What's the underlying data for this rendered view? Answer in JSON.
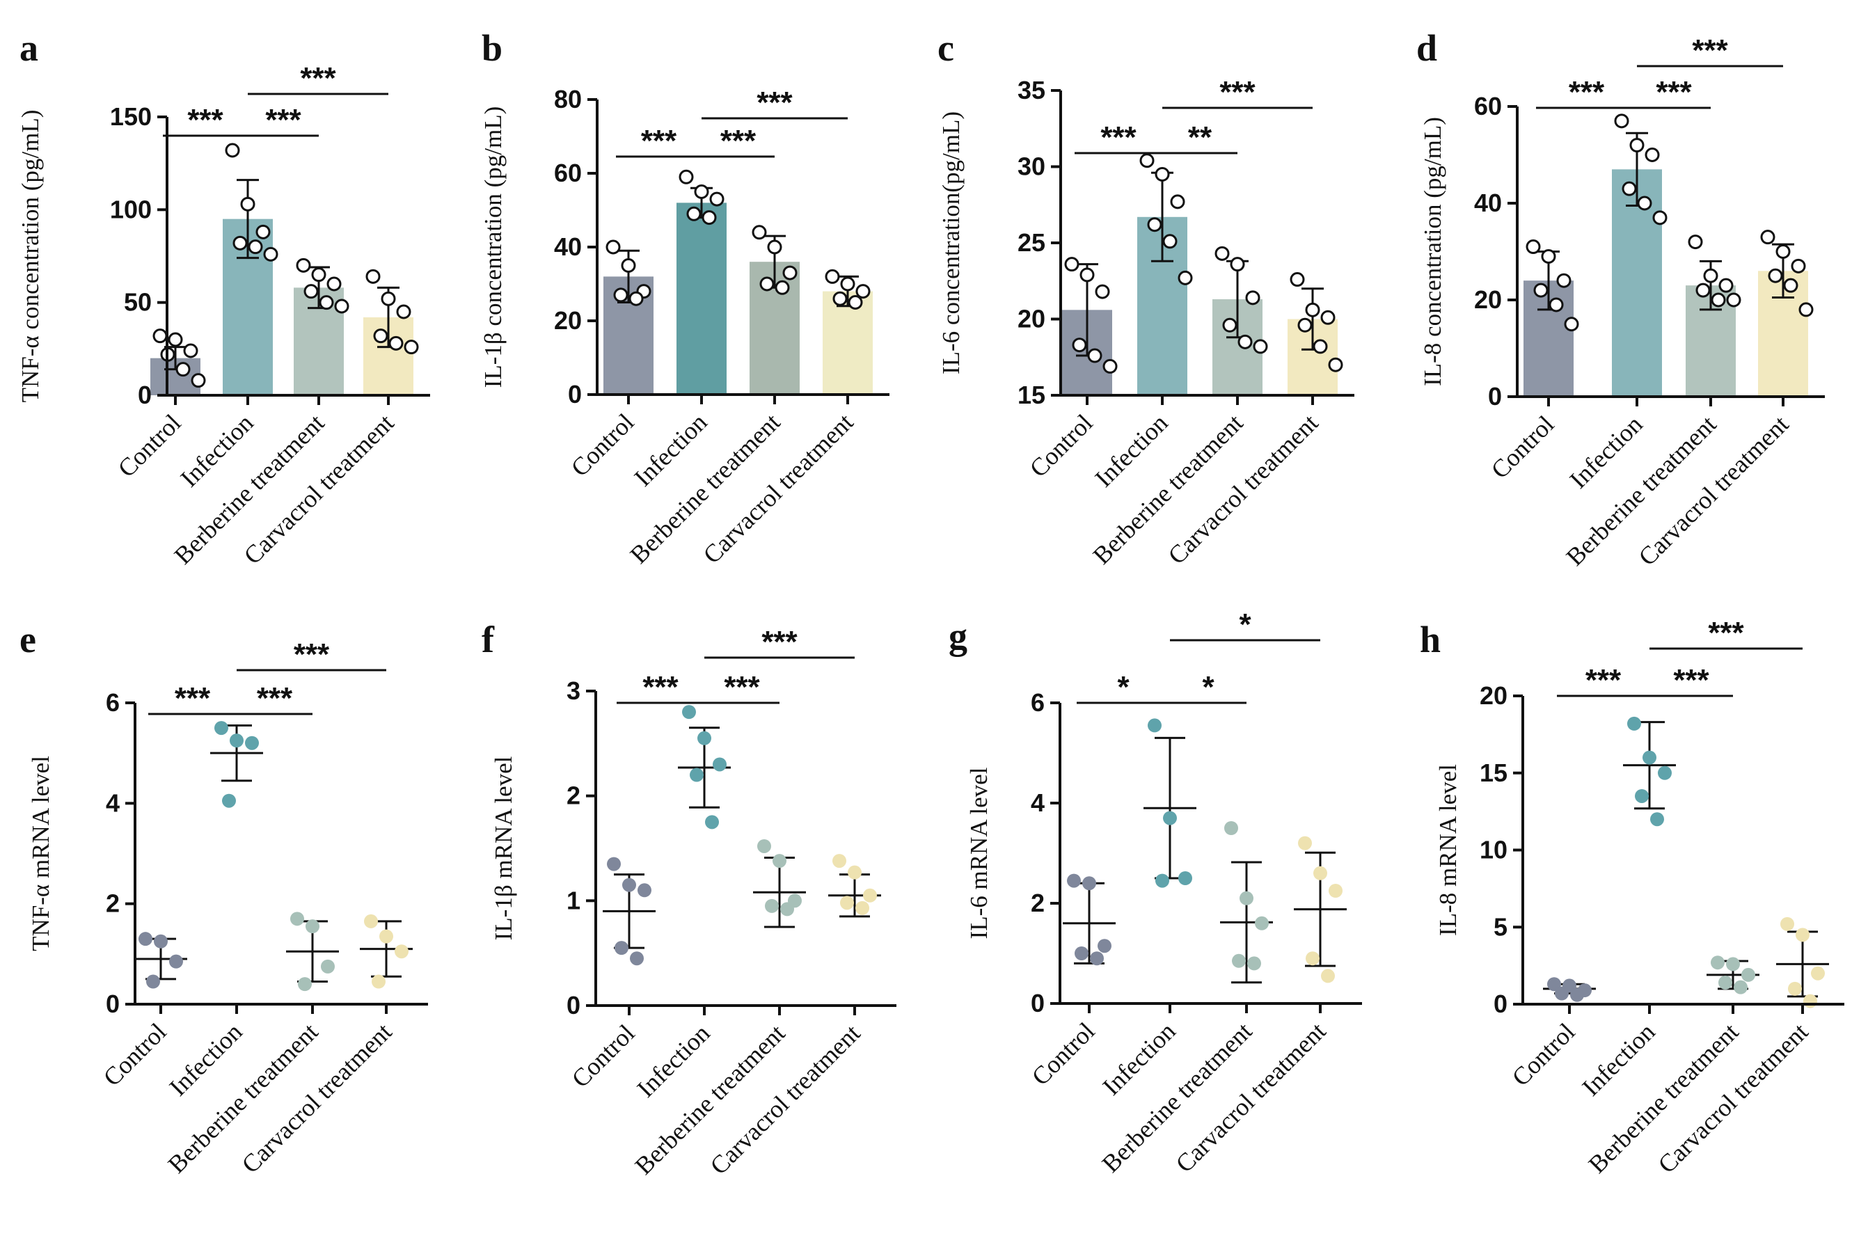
{
  "chart_data": [
    {
      "label": "a",
      "type": "bar",
      "ylabel": "TNF-α concentration (pg/mL)",
      "ylim": [
        0,
        150
      ],
      "yticks": [
        0,
        50,
        100,
        150
      ],
      "categories": [
        "Control",
        "Infection",
        "Berberine treatment",
        "Carvacrol treatment"
      ],
      "values": [
        20,
        95,
        58,
        42
      ],
      "sd": [
        6,
        21,
        11,
        16
      ],
      "points": [
        [
          32,
          30,
          24,
          22,
          14,
          8
        ],
        [
          132,
          103,
          88,
          82,
          80,
          76
        ],
        [
          70,
          65,
          60,
          56,
          50,
          48
        ],
        [
          64,
          52,
          45,
          32,
          28,
          26
        ]
      ],
      "significance": [
        {
          "from": 0,
          "to": 1,
          "label": "***"
        },
        {
          "from": 1,
          "to": 2,
          "label": "***"
        },
        {
          "from": 1,
          "to": 3,
          "label": "***"
        }
      ]
    },
    {
      "label": "b",
      "type": "bar",
      "ylabel": "IL-1β concentration (pg/mL)",
      "ylim": [
        0,
        80
      ],
      "yticks": [
        0,
        20,
        40,
        60,
        80
      ],
      "categories": [
        "Control",
        "Infection",
        "Berberine treatment",
        "Carvacrol treatment"
      ],
      "values": [
        32,
        52,
        36,
        28
      ],
      "sd": [
        7,
        4,
        7,
        4
      ],
      "points": [
        [
          40,
          35,
          28,
          27,
          26
        ],
        [
          59,
          55,
          53,
          49,
          48
        ],
        [
          44,
          40,
          33,
          30,
          29
        ],
        [
          32,
          30,
          28,
          26,
          25
        ]
      ],
      "significance": [
        {
          "from": 0,
          "to": 1,
          "label": "***"
        },
        {
          "from": 1,
          "to": 2,
          "label": "***"
        },
        {
          "from": 1,
          "to": 3,
          "label": "***"
        }
      ]
    },
    {
      "label": "c",
      "type": "bar",
      "ylabel": "IL-6 concentration(pg/mL)",
      "ylim": [
        15,
        35
      ],
      "yticks": [
        15,
        20,
        25,
        30,
        35
      ],
      "categories": [
        "Control",
        "Infection",
        "Berberine treatment",
        "Carvacrol treatment"
      ],
      "values": [
        20.6,
        26.7,
        21.3,
        20
      ],
      "sd": [
        3,
        2.9,
        2.5,
        2
      ],
      "points": [
        [
          23.6,
          22.9,
          21.8,
          18.3,
          17.6,
          16.9
        ],
        [
          30.4,
          29.5,
          27.7,
          26.2,
          25.1,
          22.7
        ],
        [
          24.3,
          23.6,
          21.4,
          19.6,
          18.5,
          18.2
        ],
        [
          22.6,
          20.6,
          20.1,
          19.6,
          18.2,
          17
        ]
      ],
      "significance": [
        {
          "from": 0,
          "to": 1,
          "label": "***"
        },
        {
          "from": 1,
          "to": 2,
          "label": "**"
        },
        {
          "from": 1,
          "to": 3,
          "label": "***"
        }
      ]
    },
    {
      "label": "d",
      "type": "bar",
      "ylabel": "IL-8 concentration (pg/mL)",
      "ylim": [
        0,
        60
      ],
      "yticks": [
        0,
        20,
        40,
        60
      ],
      "categories": [
        "Control",
        "Infection",
        "Berberine treatment",
        "Carvacrol treatment"
      ],
      "values": [
        24,
        47,
        23,
        26
      ],
      "sd": [
        6,
        7.5,
        5,
        5.5
      ],
      "points": [
        [
          31,
          29,
          24,
          22,
          19,
          15
        ],
        [
          57,
          52,
          50,
          43,
          40,
          37
        ],
        [
          32,
          25,
          23,
          22,
          20,
          20
        ],
        [
          33,
          30,
          27,
          25,
          23,
          18
        ]
      ],
      "significance": [
        {
          "from": 0,
          "to": 1,
          "label": "***"
        },
        {
          "from": 1,
          "to": 2,
          "label": "***"
        },
        {
          "from": 1,
          "to": 3,
          "label": "***"
        }
      ]
    },
    {
      "label": "e",
      "type": "scatter",
      "ylabel": "TNF-α mRNA level",
      "ylim": [
        0,
        6
      ],
      "yticks": [
        0,
        2,
        4,
        6
      ],
      "categories": [
        "Control",
        "Infection",
        "Berberine treatment",
        "Carvacrol treatment"
      ],
      "means": [
        0.9,
        5.0,
        1.05,
        1.1
      ],
      "sd": [
        0.4,
        0.55,
        0.6,
        0.55
      ],
      "points": [
        [
          1.3,
          1.25,
          0.85,
          0.45
        ],
        [
          5.5,
          5.25,
          5.2,
          4.05
        ],
        [
          1.7,
          1.55,
          0.75,
          0.4
        ],
        [
          1.65,
          1.35,
          1.05,
          0.45
        ]
      ],
      "significance": [
        {
          "from": 0,
          "to": 1,
          "label": "***"
        },
        {
          "from": 1,
          "to": 2,
          "label": "***"
        },
        {
          "from": 1,
          "to": 3,
          "label": "***"
        }
      ]
    },
    {
      "label": "f",
      "type": "scatter",
      "ylabel": "IL-1β  mRNA level",
      "ylim": [
        0,
        3
      ],
      "yticks": [
        0,
        1,
        2,
        3
      ],
      "categories": [
        "Control",
        "Infection",
        "Berberine treatment",
        "Carvacrol treatment"
      ],
      "means": [
        0.9,
        2.27,
        1.08,
        1.05
      ],
      "sd": [
        0.35,
        0.38,
        0.33,
        0.2
      ],
      "points": [
        [
          1.35,
          1.15,
          1.1,
          0.55,
          0.45
        ],
        [
          2.8,
          2.55,
          2.3,
          2.2,
          1.75
        ],
        [
          1.52,
          1.38,
          1.0,
          0.95,
          0.92
        ],
        [
          1.38,
          1.27,
          1.05,
          0.98,
          0.93
        ]
      ],
      "significance": [
        {
          "from": 0,
          "to": 1,
          "label": "***"
        },
        {
          "from": 1,
          "to": 2,
          "label": "***"
        },
        {
          "from": 1,
          "to": 3,
          "label": "***"
        }
      ]
    },
    {
      "label": "g",
      "type": "scatter",
      "ylabel": "IL-6  mRNA level",
      "ylim": [
        0,
        6
      ],
      "yticks": [
        0,
        2,
        4,
        6
      ],
      "categories": [
        "Control",
        "Infection",
        "Berberine treatment",
        "Carvacrol treatment"
      ],
      "means": [
        1.6,
        3.9,
        1.62,
        1.88
      ],
      "sd": [
        0.8,
        1.4,
        1.2,
        1.13
      ],
      "points": [
        [
          2.45,
          2.4,
          1.15,
          1.0,
          0.9
        ],
        [
          5.55,
          3.7,
          2.5,
          2.45
        ],
        [
          3.5,
          2.1,
          1.6,
          0.85,
          0.8
        ],
        [
          3.2,
          2.6,
          2.25,
          0.9,
          0.55
        ]
      ],
      "significance": [
        {
          "from": 0,
          "to": 1,
          "label": "*"
        },
        {
          "from": 1,
          "to": 2,
          "label": "*"
        },
        {
          "from": 1,
          "to": 3,
          "label": "*"
        }
      ]
    },
    {
      "label": "h",
      "type": "scatter",
      "ylabel": "IL-8  mRNA level",
      "ylim": [
        0,
        20
      ],
      "yticks": [
        0,
        5,
        10,
        15,
        20
      ],
      "categories": [
        "Control",
        "Infection",
        "Berberine treatment",
        "Carvacrol treatment"
      ],
      "means": [
        1.0,
        15.5,
        1.9,
        2.6
      ],
      "sd": [
        0.3,
        2.8,
        0.9,
        2.1
      ],
      "points": [
        [
          1.3,
          1.2,
          0.9,
          0.7,
          0.6
        ],
        [
          18.2,
          16,
          15,
          13.5,
          12
        ],
        [
          2.7,
          2.6,
          1.9,
          1.4,
          1.1
        ],
        [
          5.2,
          4.5,
          2.0,
          1.0,
          0.2
        ]
      ],
      "significance": [
        {
          "from": 0,
          "to": 1,
          "label": "***"
        },
        {
          "from": 1,
          "to": 2,
          "label": "***"
        },
        {
          "from": 1,
          "to": 3,
          "label": "***"
        }
      ]
    }
  ],
  "colors": {
    "bars": [
      "#8e96a6",
      "#88b5ba",
      "#b2c4bd",
      "#f2e9c0"
    ],
    "bars_b": [
      "#8e96a6",
      "#609ea2",
      "#a9b8ae",
      "#efebc4"
    ],
    "dots": [
      "#7f879b",
      "#5fa3ab",
      "#a7c0b8",
      "#eee2b0"
    ],
    "axis": "#111111"
  }
}
